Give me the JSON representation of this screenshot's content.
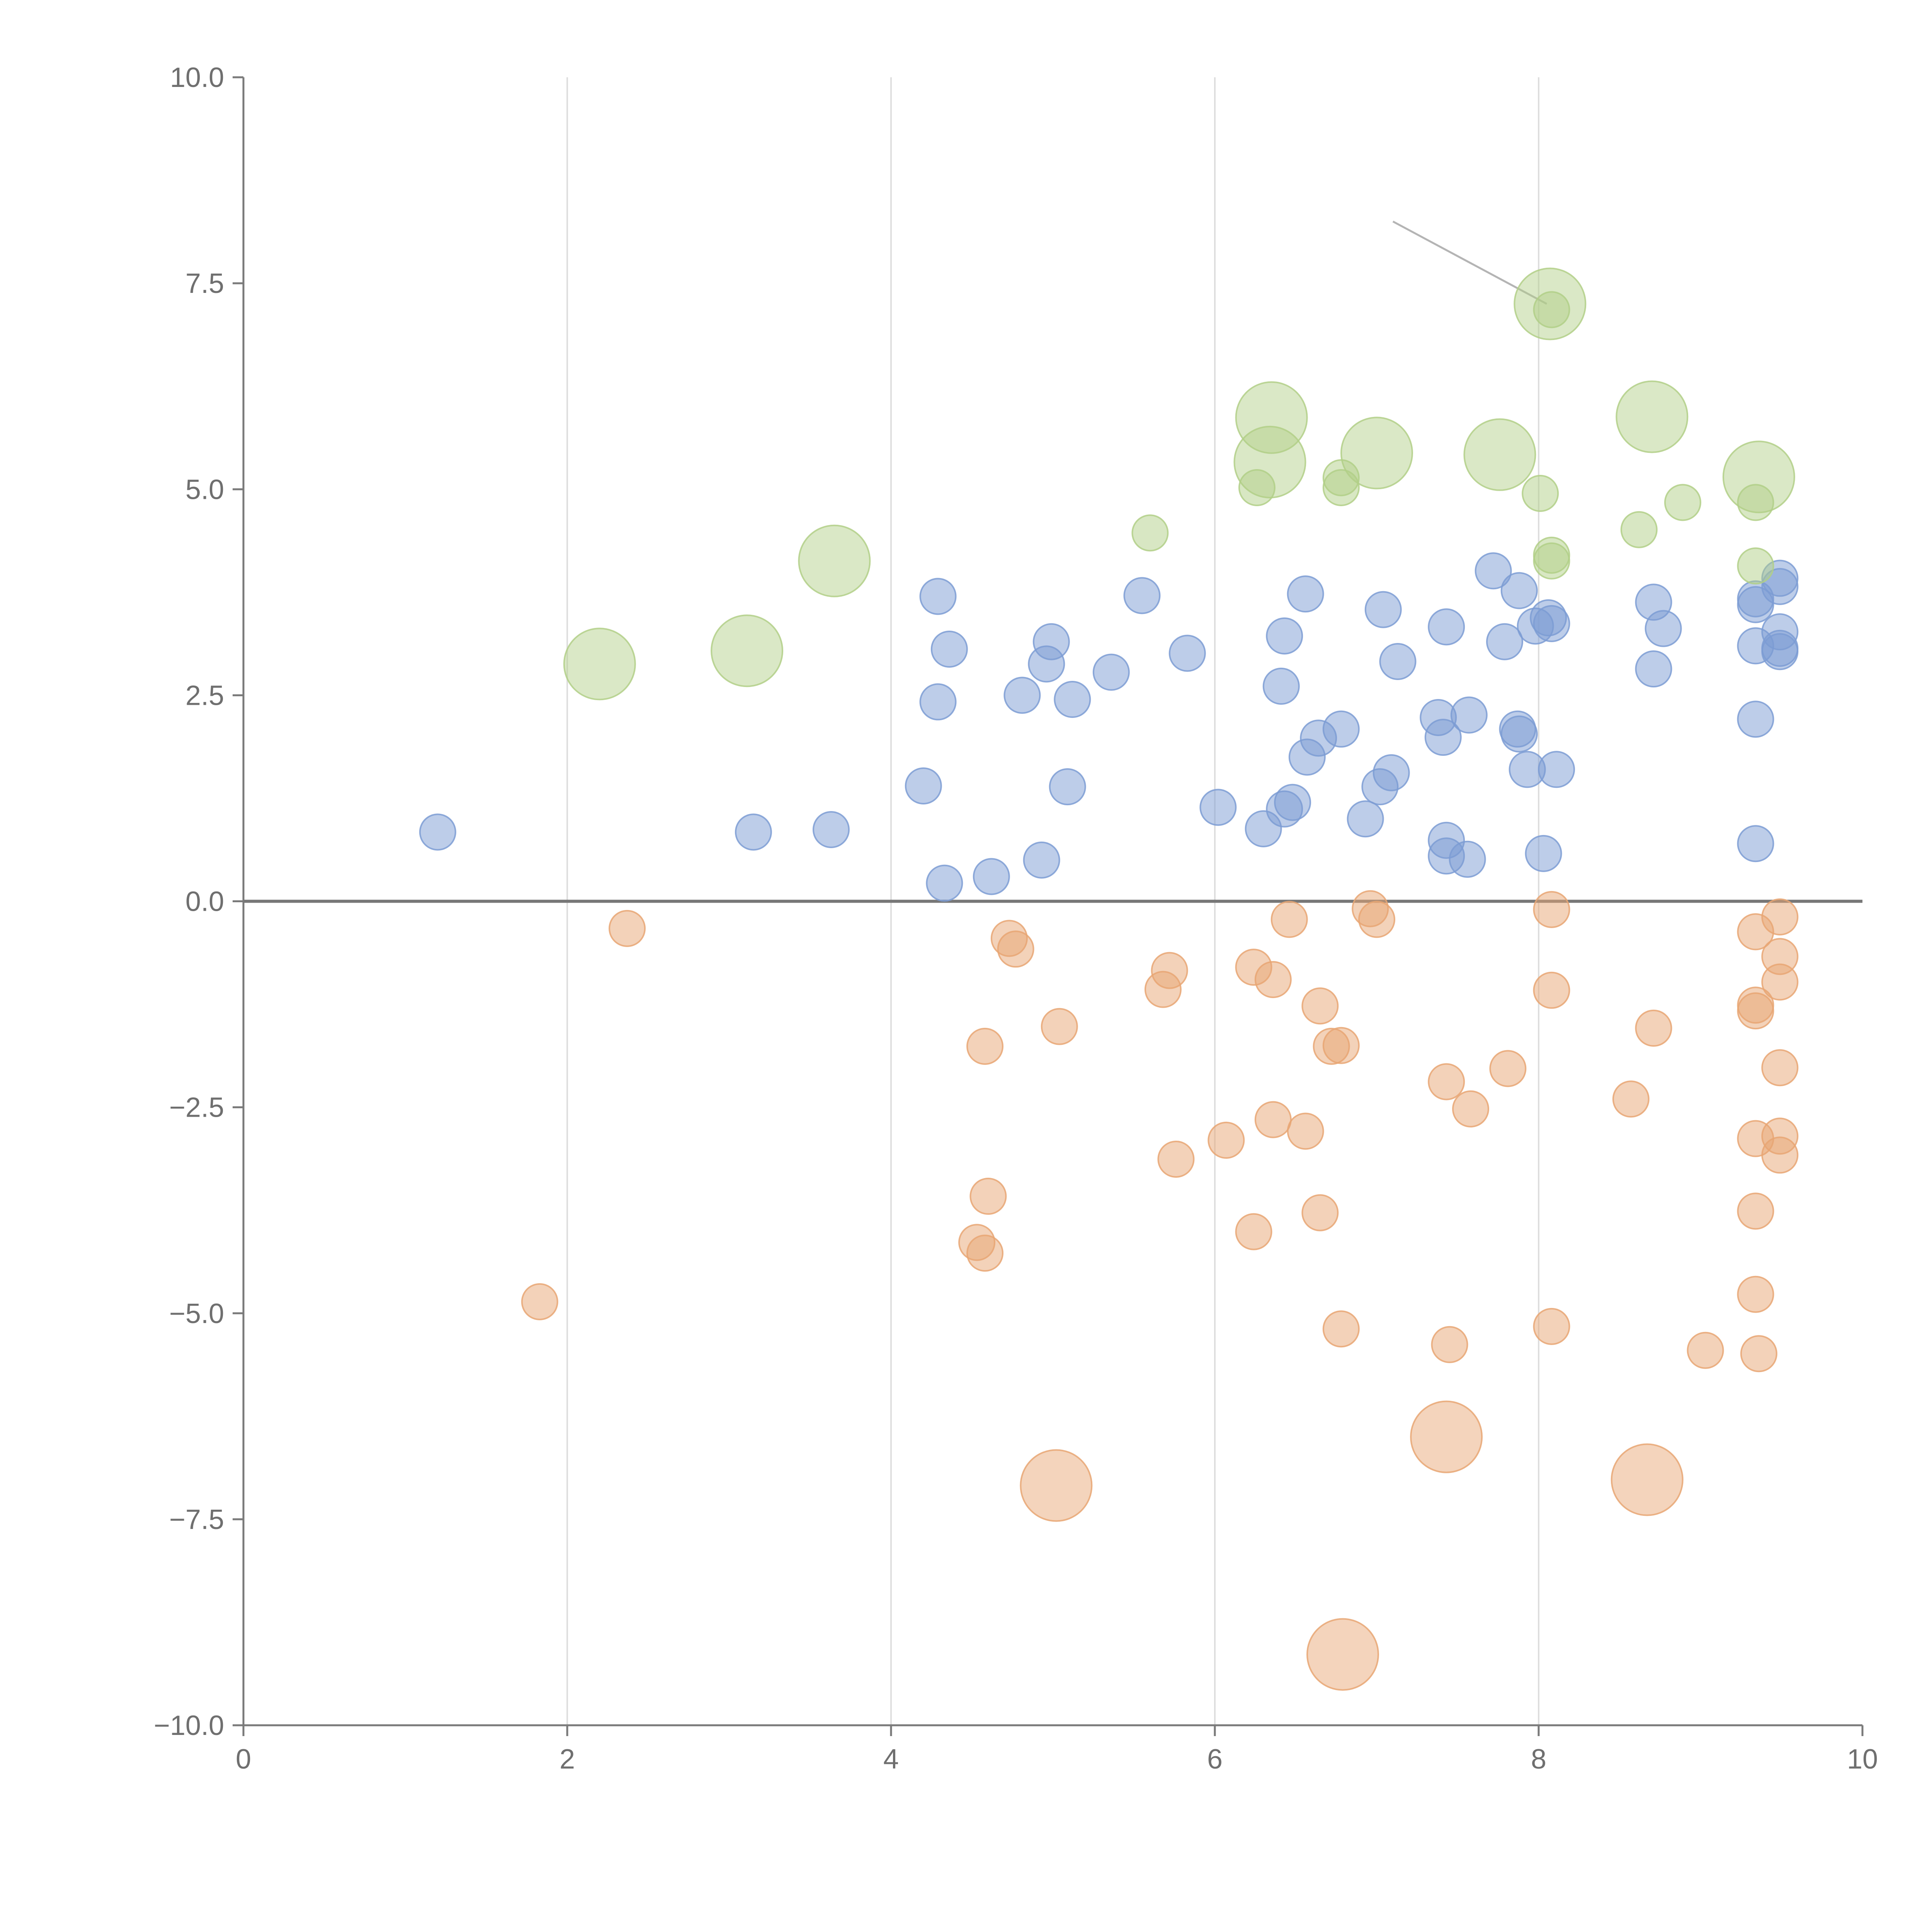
{
  "colors": {
    "positive": "#7c9cd3",
    "negative": "#e8a673",
    "highlight": "#b2cf87",
    "axis": "#7a7a7a",
    "grid": "#dedede",
    "tick_text": "#6f6f6f"
  },
  "chart_data": {
    "type": "scatter",
    "title": "",
    "xlabel": "",
    "ylabel": "",
    "xlim": [
      0,
      10
    ],
    "ylim": [
      -10,
      10
    ],
    "x_ticks": [
      "0",
      "2",
      "4",
      "6",
      "8",
      "10"
    ],
    "y_ticks": [
      "10.0",
      "7.5",
      "5.0",
      "2.5",
      "0.0",
      "−2.5",
      "−5.0",
      "−7.5",
      "−10.0"
    ],
    "x_tick_values": [
      0,
      2,
      4,
      6,
      8,
      10
    ],
    "y_tick_values": [
      10,
      7.5,
      5,
      2.5,
      0,
      -2.5,
      -5,
      -7.5,
      -10
    ],
    "grid": "vertical",
    "legend": "none",
    "series": [
      {
        "name": "positive",
        "color_key": "positive",
        "points": [
          [
            1.2,
            0.84
          ],
          [
            3.15,
            0.84
          ],
          [
            3.63,
            0.87
          ],
          [
            4.2,
            1.4
          ],
          [
            4.29,
            3.7
          ],
          [
            4.29,
            2.42
          ],
          [
            4.33,
            0.22
          ],
          [
            4.36,
            3.06
          ],
          [
            4.62,
            0.3
          ],
          [
            4.81,
            2.5
          ],
          [
            4.93,
            0.5
          ],
          [
            4.96,
            2.88
          ],
          [
            4.99,
            3.15
          ],
          [
            5.09,
            1.39
          ],
          [
            5.12,
            2.45
          ],
          [
            5.36,
            2.78
          ],
          [
            5.55,
            3.71
          ],
          [
            5.83,
            3.01
          ],
          [
            6.02,
            1.14
          ],
          [
            6.3,
            0.88
          ],
          [
            6.41,
            2.61
          ],
          [
            6.43,
            3.22
          ],
          [
            6.43,
            1.12
          ],
          [
            6.48,
            1.2
          ],
          [
            6.56,
            3.73
          ],
          [
            6.57,
            1.75
          ],
          [
            6.64,
            1.98
          ],
          [
            6.78,
            2.09
          ],
          [
            6.93,
            1.0
          ],
          [
            7.02,
            1.39
          ],
          [
            7.04,
            3.54
          ],
          [
            7.09,
            1.56
          ],
          [
            7.13,
            2.91
          ],
          [
            7.38,
            2.23
          ],
          [
            7.41,
            1.99
          ],
          [
            7.43,
            3.33
          ],
          [
            7.43,
            0.74
          ],
          [
            7.43,
            0.55
          ],
          [
            7.56,
            0.51
          ],
          [
            7.57,
            2.26
          ],
          [
            7.72,
            4.01
          ],
          [
            7.79,
            3.15
          ],
          [
            7.87,
            2.09
          ],
          [
            7.88,
            3.77
          ],
          [
            7.88,
            2.03
          ],
          [
            7.93,
            1.6
          ],
          [
            7.98,
            3.34
          ],
          [
            8.03,
            0.58
          ],
          [
            8.06,
            3.44
          ],
          [
            8.08,
            3.37
          ],
          [
            8.11,
            1.6
          ],
          [
            8.71,
            3.63
          ],
          [
            8.71,
            2.82
          ],
          [
            8.77,
            3.31
          ],
          [
            9.34,
            3.6
          ],
          [
            9.34,
            3.67
          ],
          [
            9.34,
            3.1
          ],
          [
            9.34,
            2.21
          ],
          [
            9.34,
            0.7
          ],
          [
            9.49,
            3.92
          ],
          [
            9.49,
            3.82
          ],
          [
            9.49,
            3.27
          ],
          [
            9.49,
            3.07
          ],
          [
            9.49,
            3.03
          ]
        ]
      },
      {
        "name": "negative",
        "color_key": "negative",
        "points": [
          [
            1.83,
            -4.86
          ],
          [
            2.37,
            -0.33
          ],
          [
            4.53,
            -4.14
          ],
          [
            4.58,
            -1.76
          ],
          [
            4.58,
            -4.27
          ],
          [
            4.6,
            -3.58
          ],
          [
            4.73,
            -0.45
          ],
          [
            4.77,
            -0.58
          ],
          [
            5.04,
            -1.52
          ],
          [
            5.68,
            -1.07
          ],
          [
            5.72,
            -0.84
          ],
          [
            5.76,
            -3.13
          ],
          [
            6.07,
            -2.9
          ],
          [
            6.24,
            -0.8
          ],
          [
            6.24,
            -4.01
          ],
          [
            6.36,
            -0.95
          ],
          [
            6.36,
            -2.65
          ],
          [
            6.46,
            -0.22
          ],
          [
            6.56,
            -2.79
          ],
          [
            6.65,
            -1.27
          ],
          [
            6.65,
            -3.78
          ],
          [
            6.72,
            -1.76
          ],
          [
            6.78,
            -1.75
          ],
          [
            6.78,
            -5.19
          ],
          [
            6.96,
            -0.09
          ],
          [
            7.0,
            -0.22
          ],
          [
            7.43,
            -2.19
          ],
          [
            7.45,
            -5.38
          ],
          [
            7.58,
            -2.52
          ],
          [
            7.81,
            -2.03
          ],
          [
            8.08,
            -0.1
          ],
          [
            8.08,
            -1.08
          ],
          [
            8.08,
            -5.16
          ],
          [
            8.57,
            -2.4
          ],
          [
            8.71,
            -1.54
          ],
          [
            9.03,
            -5.45
          ],
          [
            9.34,
            -0.37
          ],
          [
            9.34,
            -1.26
          ],
          [
            9.34,
            -1.33
          ],
          [
            9.34,
            -2.88
          ],
          [
            9.34,
            -3.76
          ],
          [
            9.34,
            -4.77
          ],
          [
            9.49,
            -0.19
          ],
          [
            9.49,
            -0.67
          ],
          [
            9.49,
            -0.98
          ],
          [
            9.49,
            -2.02
          ],
          [
            9.49,
            -2.85
          ],
          [
            9.49,
            -3.08
          ]
        ]
      },
      {
        "name": "highlighted-positive",
        "color_key": "highlight",
        "points": [
          [
            5.6,
            4.47
          ],
          [
            6.26,
            5.02
          ],
          [
            6.78,
            5.02
          ],
          [
            6.78,
            5.14
          ],
          [
            8.01,
            4.95
          ],
          [
            8.08,
            7.18
          ],
          [
            8.08,
            4.13
          ],
          [
            8.08,
            4.2
          ],
          [
            8.62,
            4.51
          ],
          [
            8.89,
            4.84
          ],
          [
            9.34,
            4.84
          ],
          [
            9.34,
            4.07
          ],
          [
            2.2,
            2.88
          ],
          [
            3.11,
            3.04
          ],
          [
            3.65,
            4.13
          ],
          [
            6.35,
            5.87
          ],
          [
            6.34,
            5.33
          ],
          [
            7.0,
            5.44
          ],
          [
            7.76,
            5.42
          ],
          [
            8.07,
            7.25
          ],
          [
            8.7,
            5.88
          ],
          [
            9.36,
            5.15
          ]
        ]
      },
      {
        "name": "highlighted-negative",
        "color_key": "negative",
        "points": [
          [
            5.02,
            -7.09
          ],
          [
            7.43,
            -6.5
          ],
          [
            8.67,
            -7.02
          ],
          [
            9.36,
            -5.49
          ],
          [
            6.79,
            -9.14
          ]
        ]
      }
    ],
    "highlighted_x": [
      2.2,
      3.11,
      3.65,
      6.35,
      6.34,
      7.0,
      7.76,
      8.07,
      8.7,
      9.36,
      5.02,
      7.43,
      8.67,
      6.79
    ],
    "highlighted_y": [
      2.88,
      3.04,
      4.13,
      5.87,
      5.33,
      5.44,
      5.42,
      7.25,
      5.88,
      5.15,
      -7.09,
      -6.5,
      -7.02,
      -9.14
    ]
  }
}
